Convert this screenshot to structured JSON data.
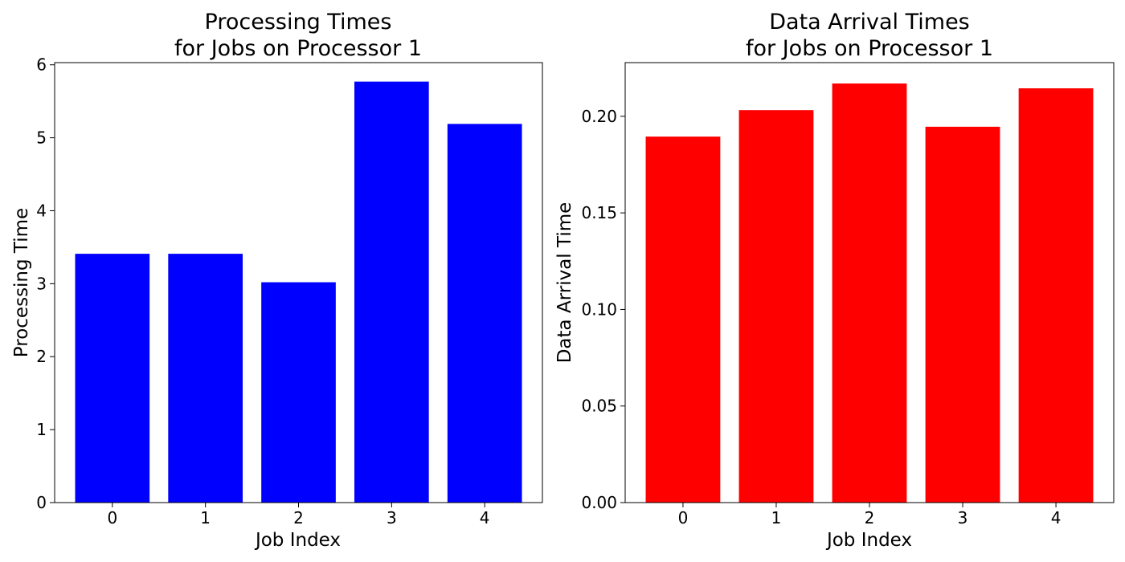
{
  "chart_data": [
    {
      "type": "bar",
      "title_lines": [
        "Processing Times",
        "for Jobs on Processor 1"
      ],
      "xlabel": "Job Index",
      "ylabel": "Processing Time",
      "categories": [
        "0",
        "1",
        "2",
        "3",
        "4"
      ],
      "values": [
        3.41,
        3.41,
        3.02,
        5.77,
        5.19
      ],
      "ylim": [
        0,
        6.03
      ],
      "yticks": [
        0,
        1,
        2,
        3,
        4,
        5,
        6
      ],
      "ytick_labels": [
        "0",
        "1",
        "2",
        "3",
        "4",
        "5",
        "6"
      ],
      "color": "#0000ff",
      "grid": false,
      "legend": "none"
    },
    {
      "type": "bar",
      "title_lines": [
        "Data Arrival Times",
        "for Jobs on Processor 1"
      ],
      "xlabel": "Job Index",
      "ylabel": "Data Arrival Time",
      "categories": [
        "0",
        "1",
        "2",
        "3",
        "4"
      ],
      "values": [
        0.1895,
        0.2032,
        0.217,
        0.1946,
        0.2145
      ],
      "ylim": [
        0,
        0.2278
      ],
      "yticks": [
        0,
        0.05,
        0.1,
        0.15,
        0.2
      ],
      "ytick_labels": [
        "0.00",
        "0.05",
        "0.10",
        "0.15",
        "0.20"
      ],
      "color": "#ff0000",
      "grid": false,
      "legend": "none"
    }
  ]
}
